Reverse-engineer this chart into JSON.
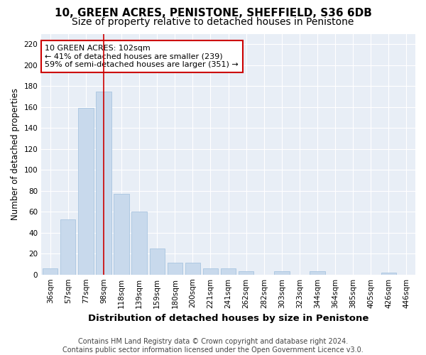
{
  "title": "10, GREEN ACRES, PENISTONE, SHEFFIELD, S36 6DB",
  "subtitle": "Size of property relative to detached houses in Penistone",
  "xlabel": "Distribution of detached houses by size in Penistone",
  "ylabel": "Number of detached properties",
  "bar_labels": [
    "36sqm",
    "57sqm",
    "77sqm",
    "98sqm",
    "118sqm",
    "139sqm",
    "159sqm",
    "180sqm",
    "200sqm",
    "221sqm",
    "241sqm",
    "262sqm",
    "282sqm",
    "303sqm",
    "323sqm",
    "344sqm",
    "364sqm",
    "385sqm",
    "405sqm",
    "426sqm",
    "446sqm"
  ],
  "bar_values": [
    6,
    53,
    159,
    175,
    77,
    60,
    25,
    11,
    11,
    6,
    6,
    3,
    0,
    3,
    0,
    3,
    0,
    0,
    0,
    2,
    0
  ],
  "bar_color": "#c8d9ec",
  "bar_edge_color": "#a8c4e0",
  "vline_x": 3,
  "vline_color": "#cc0000",
  "annotation_text": "10 GREEN ACRES: 102sqm\n← 41% of detached houses are smaller (239)\n59% of semi-detached houses are larger (351) →",
  "annotation_box_color": "#ffffff",
  "annotation_box_edge": "#cc0000",
  "ylim": [
    0,
    230
  ],
  "yticks": [
    0,
    20,
    40,
    60,
    80,
    100,
    120,
    140,
    160,
    180,
    200,
    220
  ],
  "background_color": "#e8eef6",
  "footer": "Contains HM Land Registry data © Crown copyright and database right 2024.\nContains public sector information licensed under the Open Government Licence v3.0.",
  "title_fontsize": 11,
  "subtitle_fontsize": 10,
  "xlabel_fontsize": 9.5,
  "ylabel_fontsize": 8.5,
  "tick_fontsize": 7.5,
  "annotation_fontsize": 8,
  "footer_fontsize": 7
}
